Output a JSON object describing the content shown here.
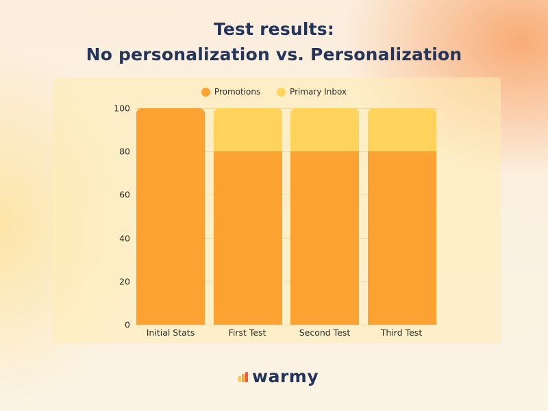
{
  "title": {
    "line1": "Test results:",
    "line2": "No personalization vs. Personalization"
  },
  "legend": {
    "items": [
      {
        "label": "Promotions",
        "color": "#fba232"
      },
      {
        "label": "Primary Inbox",
        "color": "#ffd35c"
      }
    ]
  },
  "y_ticks": [
    "100",
    "80",
    "60",
    "40",
    "20",
    "0"
  ],
  "x_labels": [
    "Initial Stats",
    "First Test",
    "Second Test",
    "Third Test"
  ],
  "brand": {
    "name": "warmy",
    "colors": [
      "#fcc64a",
      "#f9a33a",
      "#ef5b3c"
    ]
  },
  "colors": {
    "promotions": "#fba232",
    "primary_inbox": "#ffd35c",
    "title": "#23355a"
  },
  "chart_data": {
    "type": "bar",
    "stacked": true,
    "title": "Test results: No personalization vs. Personalization",
    "categories": [
      "Initial Stats",
      "First Test",
      "Second Test",
      "Third Test"
    ],
    "series": [
      {
        "name": "Promotions",
        "values": [
          100,
          80,
          80,
          80
        ],
        "color": "#fba232"
      },
      {
        "name": "Primary Inbox",
        "values": [
          0,
          20,
          20,
          20
        ],
        "color": "#ffd35c"
      }
    ],
    "xlabel": "",
    "ylabel": "",
    "ylim": [
      0,
      100
    ],
    "yticks": [
      0,
      20,
      40,
      60,
      80,
      100
    ],
    "grid": true,
    "legend_position": "top"
  }
}
